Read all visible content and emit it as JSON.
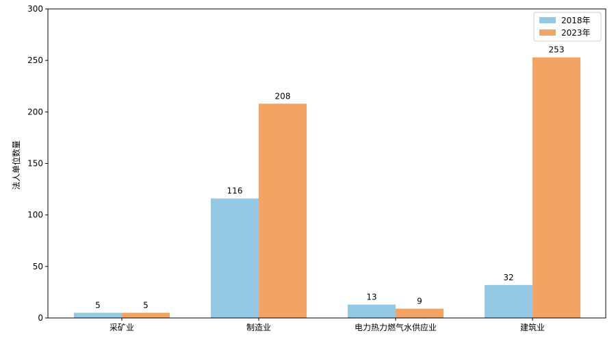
{
  "chart_data": {
    "type": "bar",
    "title": "",
    "xlabel": "",
    "ylabel": "法人单位数量",
    "categories": [
      "采矿业",
      "制造业",
      "电力热力燃气水供应业",
      "建筑业"
    ],
    "series": [
      {
        "name": "2018年",
        "values": [
          5,
          116,
          13,
          32
        ],
        "color": "#93c9e4"
      },
      {
        "name": "2023年",
        "values": [
          5,
          208,
          9,
          253
        ],
        "color": "#f3a462"
      }
    ],
    "ylim": [
      0,
      300
    ],
    "yticks": [
      0,
      50,
      100,
      150,
      200,
      250,
      300
    ],
    "grid": false,
    "legend_position": "top-right",
    "data_labels": true
  }
}
